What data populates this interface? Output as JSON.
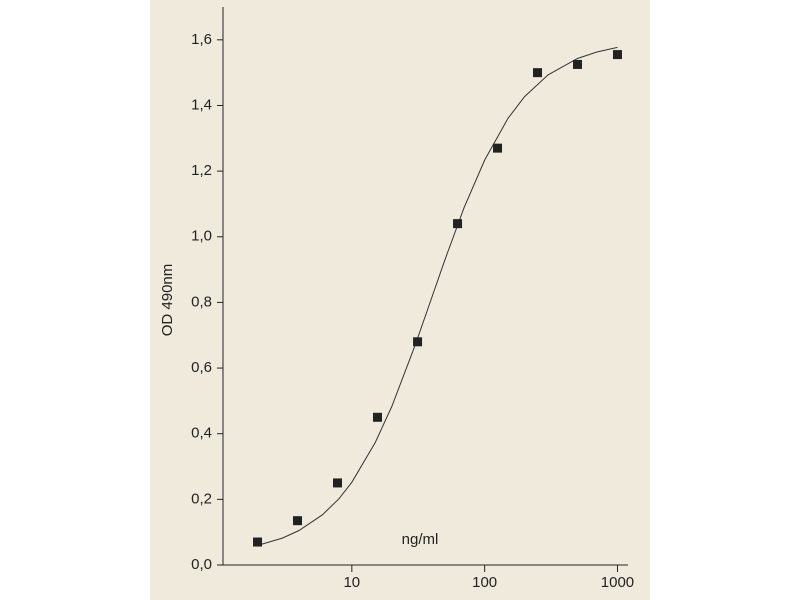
{
  "chart_data": {
    "type": "scatter",
    "xlabel": "ng/ml",
    "ylabel": "OD 490nm",
    "x": [
      1.95,
      3.9,
      7.8,
      15.6,
      31.25,
      62.5,
      125,
      250,
      500,
      1000
    ],
    "values": [
      0.07,
      0.135,
      0.25,
      0.45,
      0.68,
      1.04,
      1.27,
      1.5,
      1.525,
      1.555
    ],
    "color": "#222222",
    "curve": {
      "x": [
        2,
        3,
        4,
        6,
        8,
        10,
        15,
        20,
        30,
        40,
        50,
        70,
        100,
        150,
        200,
        300,
        500,
        700,
        1000
      ],
      "values": [
        0.061,
        0.082,
        0.105,
        0.153,
        0.202,
        0.252,
        0.373,
        0.483,
        0.67,
        0.815,
        0.928,
        1.089,
        1.234,
        1.361,
        1.427,
        1.493,
        1.543,
        1.563,
        1.577
      ]
    },
    "xscale": "log",
    "xlim": [
      1,
      1200
    ],
    "xticks": [
      10,
      100,
      1000
    ],
    "ylim": [
      0,
      1.7
    ],
    "yticks": [
      {
        "value": 0,
        "label": "0,0"
      },
      {
        "value": 0.2,
        "label": "0,2"
      },
      {
        "value": 0.4,
        "label": "0,4"
      },
      {
        "value": 0.6,
        "label": "0,6"
      },
      {
        "value": 0.8,
        "label": "0,8"
      },
      {
        "value": 1.0,
        "label": "1,0"
      },
      {
        "value": 1.2,
        "label": "1,2"
      },
      {
        "value": 1.4,
        "label": "1,4"
      },
      {
        "value": 1.6,
        "label": "1,6"
      }
    ]
  }
}
